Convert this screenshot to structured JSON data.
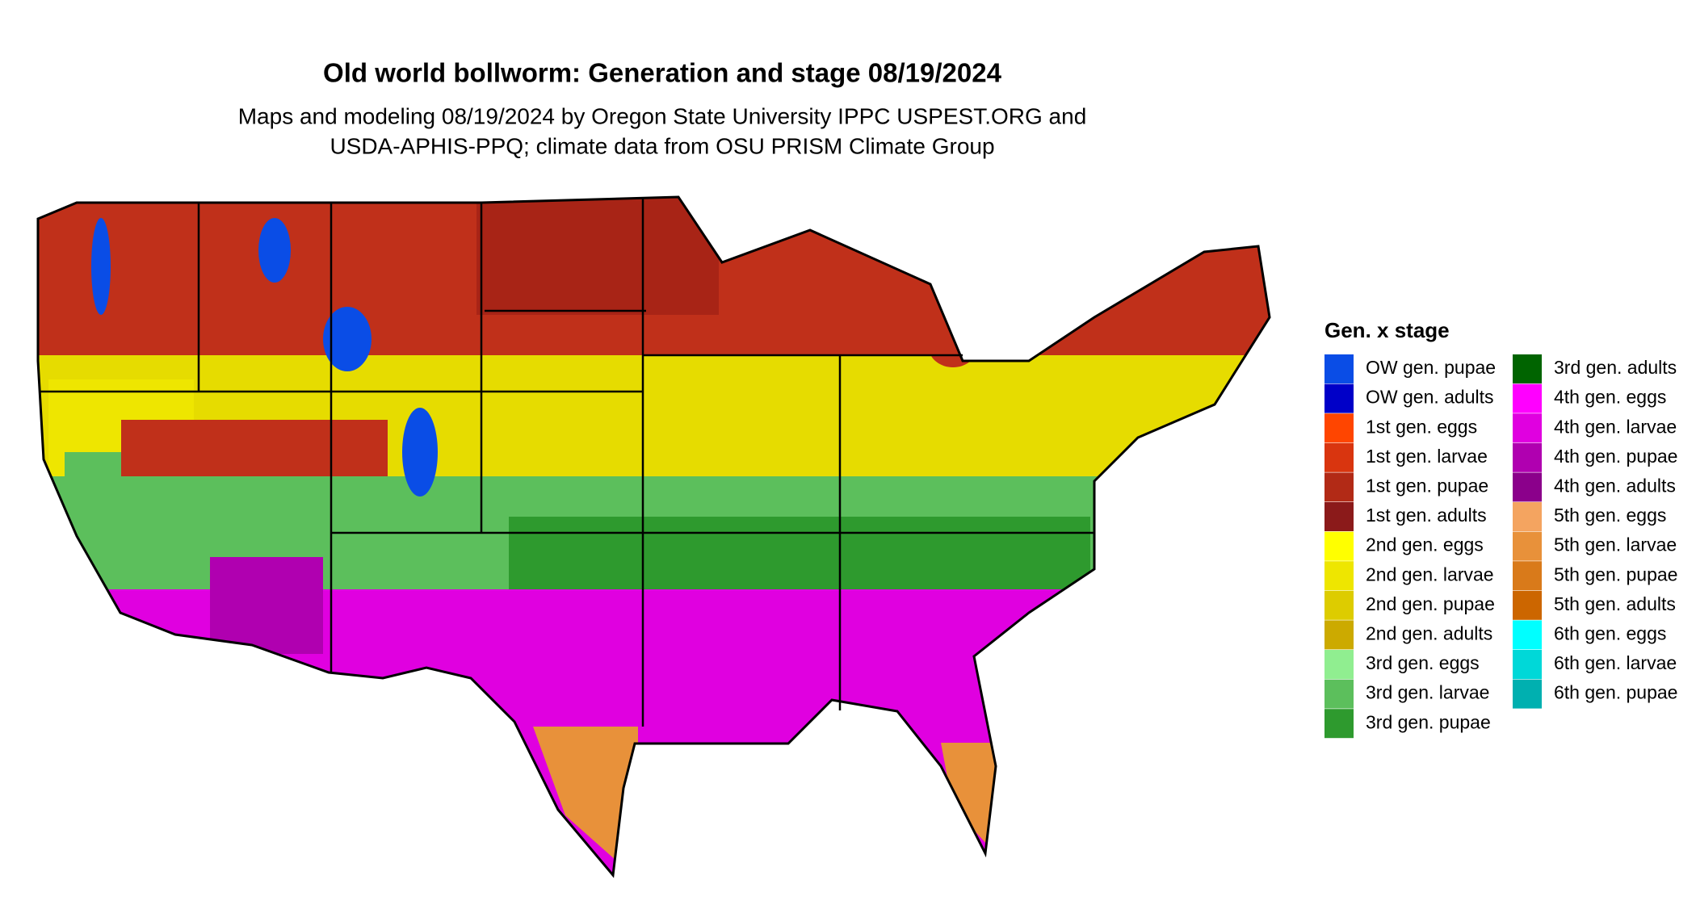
{
  "title": "Old world bollworm: Generation and stage 08/19/2024",
  "subtitle": [
    "Maps and modeling 08/19/2024 by Oregon State University IPPC USPEST.ORG and",
    "USDA-APHIS-PPQ; climate data from OSU PRISM Climate Group"
  ],
  "legend": {
    "title": "Gen. x stage",
    "items": [
      {
        "label": "OW gen. pupae",
        "color": "#0a4de6"
      },
      {
        "label": "OW gen. adults",
        "color": "#0000c8"
      },
      {
        "label": "1st gen. eggs",
        "color": "#ff4500"
      },
      {
        "label": "1st gen. larvae",
        "color": "#d9350f"
      },
      {
        "label": "1st gen. pupae",
        "color": "#b22a16"
      },
      {
        "label": "1st gen. adults",
        "color": "#8b1a1a"
      },
      {
        "label": "2nd gen. eggs",
        "color": "#ffff00"
      },
      {
        "label": "2nd gen. larvae",
        "color": "#eee600"
      },
      {
        "label": "2nd gen. pupae",
        "color": "#ddcc00"
      },
      {
        "label": "2nd gen. adults",
        "color": "#ccaa00"
      },
      {
        "label": "3rd gen. eggs",
        "color": "#90ee90"
      },
      {
        "label": "3rd gen. larvae",
        "color": "#5cbf5c"
      },
      {
        "label": "3rd gen. pupae",
        "color": "#2e9a2e"
      },
      {
        "label": "3rd gen. adults",
        "color": "#006400"
      },
      {
        "label": "4th gen. eggs",
        "color": "#ff00ff"
      },
      {
        "label": "4th gen. larvae",
        "color": "#e000e0"
      },
      {
        "label": "4th gen. pupae",
        "color": "#b000b0"
      },
      {
        "label": "4th gen. adults",
        "color": "#8b008b"
      },
      {
        "label": "5th gen. eggs",
        "color": "#f4a460"
      },
      {
        "label": "5th gen. larvae",
        "color": "#e8913a"
      },
      {
        "label": "5th gen. pupae",
        "color": "#d97a1a"
      },
      {
        "label": "5th gen. adults",
        "color": "#cc6600"
      },
      {
        "label": "6th gen. eggs",
        "color": "#00ffff"
      },
      {
        "label": "6th gen. larvae",
        "color": "#00d8d8"
      },
      {
        "label": "6th gen. pupae",
        "color": "#00b0b0"
      }
    ]
  }
}
